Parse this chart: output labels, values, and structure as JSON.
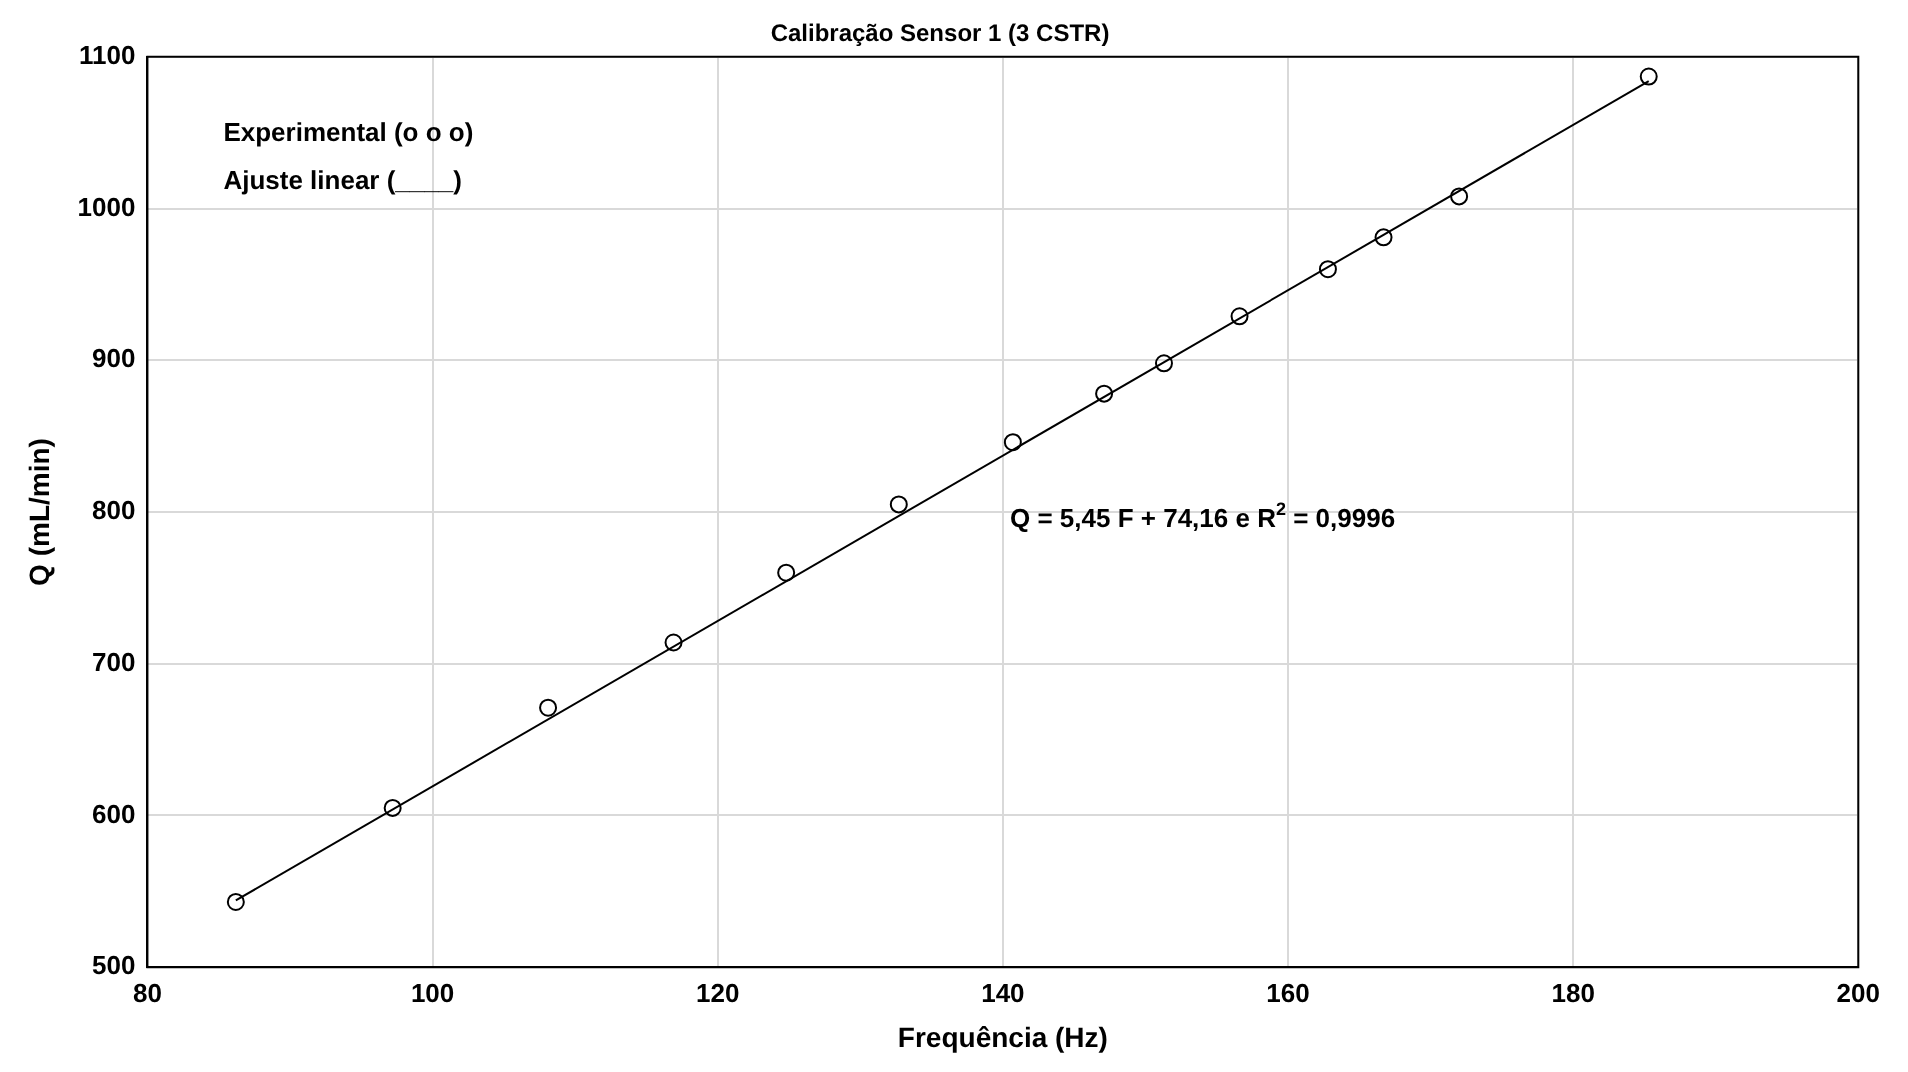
{
  "chart_data": {
    "type": "scatter",
    "title": "Calibração Sensor 1 (3 CSTR)",
    "xlabel": "Frequência (Hz)",
    "ylabel": "Q (mL/min)",
    "xlim": [
      80,
      200
    ],
    "xticks": [
      80,
      100,
      120,
      140,
      160,
      180,
      200
    ],
    "ylim": [
      500,
      1100
    ],
    "yticks": [
      500,
      600,
      700,
      800,
      900,
      1000,
      1100
    ],
    "grid": true,
    "legend": false,
    "annotations": [
      "Experimental (o o o)",
      "Ajuste linear (____)",
      "Q = 5,45 F + 74,16 e R$^{2}$ = 0,9996"
    ],
    "series": [
      {
        "color": "#000000",
        "marker": "circle",
        "x": [
          86.2,
          97.2,
          108.1,
          116.9,
          124.8,
          132.7,
          140.7,
          147.1,
          151.3,
          156.6,
          162.8,
          166.7,
          172.0,
          185.3
        ],
        "values": [
          543,
          605,
          671,
          714,
          760,
          805,
          846,
          878,
          898,
          929,
          960,
          981,
          1008,
          1087
        ]
      },
      {
        "type": "line",
        "color": "#000000",
        "line_style": "solid",
        "marker": "none",
        "x": [
          86.2,
          185.3
        ],
        "values": [
          544,
          1084
        ]
      }
    ]
  }
}
